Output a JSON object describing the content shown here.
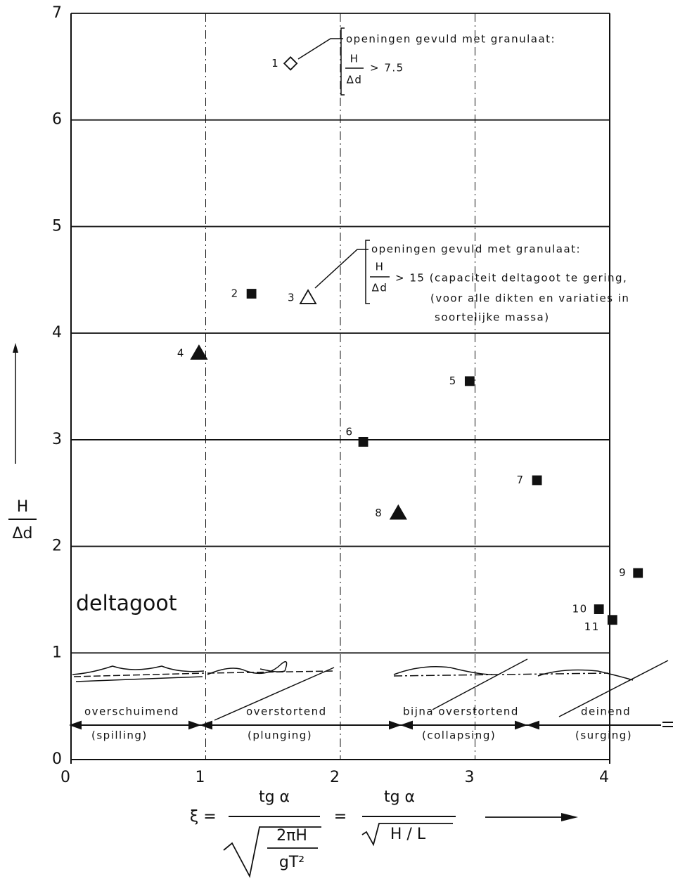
{
  "chart_data": {
    "type": "scatter",
    "x": [
      1.63,
      1.34,
      1.76,
      0.95,
      2.96,
      2.17,
      3.46,
      2.43,
      4.21,
      3.92,
      4.02
    ],
    "values": [
      6.53,
      4.37,
      4.33,
      3.81,
      3.55,
      2.98,
      2.62,
      2.31,
      1.75,
      1.41,
      1.31
    ],
    "point_labels": [
      "1",
      "2",
      "3",
      "4",
      "5",
      "6",
      "7",
      "8",
      "9",
      "10",
      "11"
    ],
    "markers": [
      "open-diamond",
      "square",
      "open-triangle",
      "triangle",
      "square",
      "square",
      "square",
      "triangle",
      "square",
      "square",
      "square"
    ],
    "color": "#111111",
    "xlim": [
      0,
      4
    ],
    "ylim": [
      0,
      7
    ],
    "xticks": [
      0,
      1,
      2,
      3,
      4
    ],
    "yticks": [
      0,
      1,
      2,
      3,
      4,
      5,
      6,
      7
    ],
    "grid": true,
    "y_label": {
      "num": "H",
      "den": "Δd"
    },
    "x_label": {
      "lhs": "ξ =",
      "num": "tg α",
      "inner_num": "2πH",
      "inner_den": "gT²",
      "eq": "=",
      "num2": "tg α",
      "den2": "H / L"
    },
    "annotations": [
      {
        "head": "openingen gevuld met granulaat:",
        "num": "H",
        "den": "Δd",
        "cond": "> 7.5"
      },
      {
        "head": "openingen gevuld met granulaat:",
        "num": "H",
        "den": "Δd",
        "cond": "> 15  (capaciteit deltagoot te gering,",
        "line2": "(voor alle dikten en variaties in",
        "line3": "soortelijke massa)"
      }
    ],
    "flume_label": "deltagoot",
    "regimes": [
      {
        "name": "overschuimend",
        "sub": "(spilling)"
      },
      {
        "name": "overstortend",
        "sub": "(plunging)"
      },
      {
        "name": "bijna overstortend",
        "sub": "(collapsing)"
      },
      {
        "name": "deinend",
        "sub": "(surging)"
      }
    ]
  }
}
